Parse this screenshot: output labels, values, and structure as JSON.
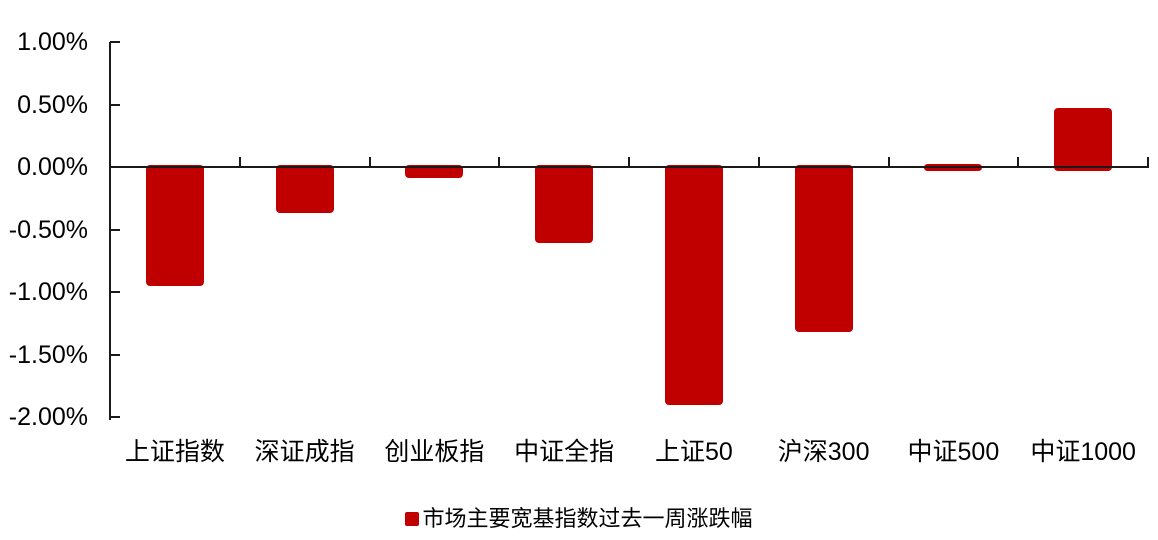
{
  "chart_data": {
    "type": "bar",
    "title": "",
    "categories": [
      "上证指数",
      "深证成指",
      "创业板指",
      "中证全指",
      "上证50",
      "沪深300",
      "中证500",
      "中证1000"
    ],
    "values": [
      -0.95,
      -0.37,
      -0.09,
      -0.61,
      -1.9,
      -1.32,
      0.02,
      0.47
    ],
    "series_name": "市场主要宽基指数过去一周涨跌幅",
    "value_unit": "%",
    "y_axis": {
      "tick_labels": [
        "1.00%",
        "0.50%",
        "0.00%",
        "-0.50%",
        "-1.00%",
        "-1.50%",
        "-2.00%"
      ],
      "tick_values": [
        1.0,
        0.5,
        0.0,
        -0.5,
        -1.0,
        -1.5,
        -2.0
      ],
      "ylim": [
        -2.0,
        1.0
      ]
    },
    "grid": false,
    "legend_position": "bottom",
    "colors": {
      "bar": "#c00000",
      "axis": "#1a1a1a",
      "text": "#000000"
    }
  }
}
